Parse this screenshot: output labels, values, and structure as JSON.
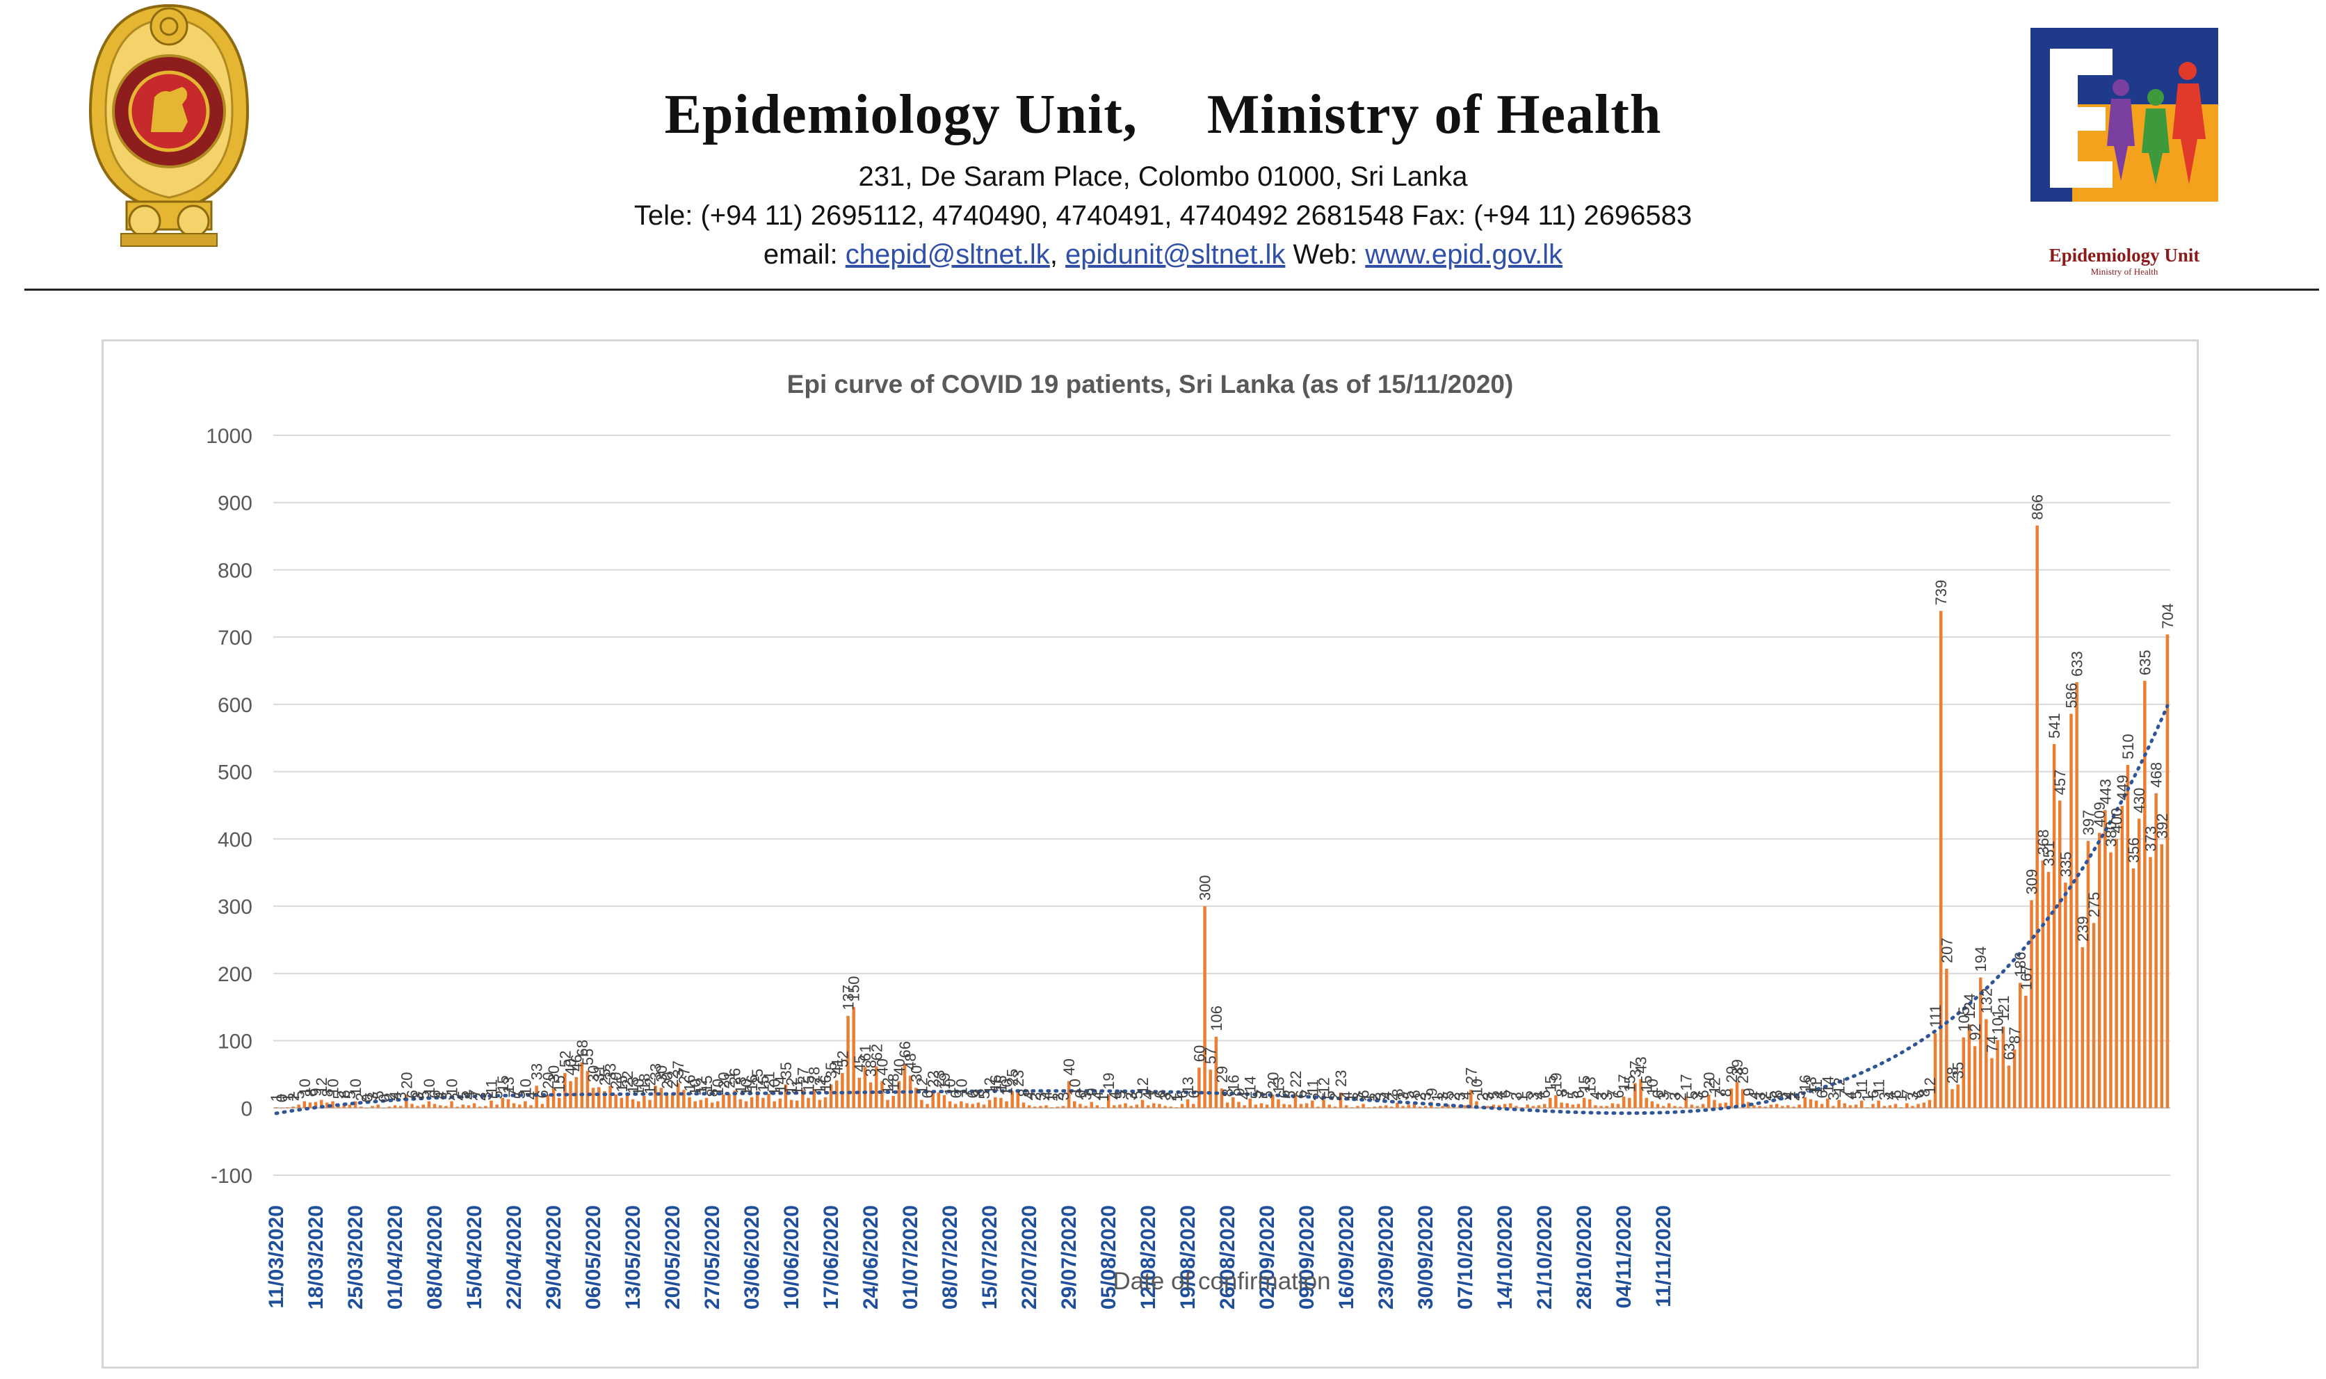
{
  "header": {
    "title_left": "Epidemiology Unit,",
    "title_right": "Ministry of Health",
    "address": "231, De Saram Place, Colombo 01000, Sri Lanka",
    "phone_line": "Tele: (+94 11) 2695112, 4740490, 4740491, 4740492 2681548  Fax: (+94 11) 2696583",
    "email_prefix": "email: ",
    "email1": "chepid@sltnet.lk",
    "email_sep": ", ",
    "email2": "epidunit@sltnet.lk",
    "web_prefix": " Web: ",
    "web": "www.epid.gov.lk",
    "logo_caption": "Epidemiology Unit",
    "logo_subcaption": "Ministry of Health"
  },
  "colors": {
    "bar": "#ed7d31",
    "trend": "#2f5597",
    "date_label": "#1f4e9a",
    "grid": "#d9d9d9",
    "axis_text": "#595959"
  },
  "chart_data": {
    "type": "bar",
    "title": "Epi curve of COVID 19 patients, Sri Lanka  (as of 15/11/2020)",
    "xlabel": "Date of confirmation",
    "ylabel": "",
    "ylim": [
      -100,
      1000
    ],
    "yticks": [
      "1000",
      "900",
      "800",
      "700",
      "600",
      "500",
      "400",
      "300",
      "200",
      "100",
      "0",
      "-100"
    ],
    "x_tick_labels": [
      "11/03/2020",
      "18/03/2020",
      "25/03/2020",
      "01/04/2020",
      "08/04/2020",
      "15/04/2020",
      "22/04/2020",
      "29/04/2020",
      "06/05/2020",
      "13/05/2020",
      "20/05/2020",
      "27/05/2020",
      "03/06/2020",
      "10/06/2020",
      "17/06/2020",
      "24/06/2020",
      "01/07/2020",
      "08/07/2020",
      "15/07/2020",
      "22/07/2020",
      "29/07/2020",
      "05/08/2020",
      "12/08/2020",
      "19/08/2020",
      "26/08/2020",
      "02/09/2020",
      "09/09/2020",
      "16/09/2020",
      "23/09/2020",
      "30/09/2020",
      "07/10/2020",
      "14/10/2020",
      "21/10/2020",
      "28/10/2020",
      "04/11/2020",
      "11/11/2020"
    ],
    "start_date": "11/03/2020",
    "trendline": "polynomial (dotted)",
    "grid": true,
    "legend": "none",
    "values": [
      1,
      0,
      1,
      2,
      5,
      10,
      8,
      9,
      12,
      8,
      10,
      5,
      6,
      5,
      10,
      2,
      0,
      3,
      5,
      0,
      2,
      4,
      3,
      20,
      6,
      3,
      5,
      10,
      6,
      4,
      3,
      10,
      2,
      5,
      4,
      7,
      2,
      3,
      11,
      5,
      15,
      13,
      7,
      5,
      10,
      4,
      33,
      6,
      20,
      30,
      15,
      52,
      40,
      46,
      68,
      55,
      30,
      31,
      25,
      33,
      20,
      15,
      22,
      13,
      10,
      18,
      12,
      33,
      30,
      20,
      22,
      37,
      27,
      16,
      10,
      12,
      15,
      8,
      10,
      20,
      21,
      26,
      13,
      10,
      16,
      25,
      15,
      21,
      10,
      14,
      35,
      12,
      11,
      27,
      15,
      28,
      12,
      16,
      35,
      41,
      52,
      137,
      150,
      45,
      61,
      38,
      62,
      40,
      12,
      18,
      40,
      66,
      48,
      30,
      12,
      6,
      22,
      23,
      19,
      10,
      6,
      10,
      7,
      6,
      8,
      5,
      12,
      16,
      15,
      10,
      25,
      23,
      8,
      4,
      2,
      3,
      4,
      1,
      2,
      3,
      40,
      10,
      6,
      3,
      9,
      4,
      1,
      19,
      4,
      5,
      7,
      3,
      5,
      12,
      4,
      7,
      6,
      3,
      2,
      1,
      6,
      13,
      6,
      60,
      300,
      57,
      106,
      29,
      8,
      16,
      9,
      4,
      14,
      5,
      7,
      5,
      20,
      13,
      6,
      5,
      22,
      6,
      7,
      11,
      2,
      12,
      5,
      2,
      23,
      4,
      1,
      3,
      6,
      1,
      2,
      3,
      4,
      2,
      8,
      3,
      5,
      6,
      2,
      3,
      9,
      1,
      3,
      5,
      2,
      3,
      4,
      27,
      10,
      2,
      3,
      5,
      4,
      6,
      7,
      3,
      1,
      5,
      3,
      4,
      6,
      15,
      19,
      8,
      7,
      5,
      6,
      15,
      13,
      4,
      3,
      3,
      7,
      6,
      17,
      15,
      37,
      43,
      15,
      10,
      6,
      3,
      7,
      3,
      2,
      17,
      5,
      3,
      6,
      20,
      12,
      7,
      8,
      29,
      39,
      28,
      9,
      4,
      3,
      2,
      5,
      6,
      3,
      4,
      2,
      5,
      16,
      13,
      11,
      6,
      14,
      3,
      12,
      7,
      4,
      5,
      11,
      1,
      6,
      11,
      3,
      4,
      6,
      1,
      7,
      3,
      6,
      8,
      12,
      111,
      739,
      207,
      28,
      35,
      105,
      124,
      92,
      194,
      132,
      74,
      101,
      121,
      63,
      87,
      186,
      167,
      309,
      866,
      368,
      351,
      541,
      457,
      335,
      586,
      633,
      239,
      397,
      275,
      409,
      443,
      380,
      400,
      449,
      510,
      356,
      430,
      635,
      373,
      468,
      392,
      704
    ]
  }
}
